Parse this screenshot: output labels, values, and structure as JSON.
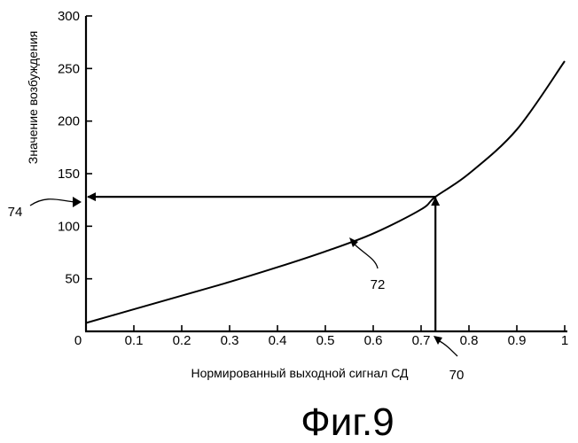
{
  "chart_data": {
    "type": "line",
    "title": "",
    "xlabel": "Нормированный выходной сигнал СД",
    "ylabel": "Значение возбуждения",
    "xlim": [
      0,
      1
    ],
    "ylim": [
      0,
      300
    ],
    "x_ticks": [
      "0",
      "0.1",
      "0.2",
      "0.3",
      "0.4",
      "0.5",
      "0.6",
      "0.7",
      "0.8",
      "0.9",
      "1"
    ],
    "y_ticks": [
      "50",
      "100",
      "150",
      "200",
      "250",
      "300"
    ],
    "grid": false,
    "legend": "none",
    "series": [
      {
        "x": [
          0,
          0.1,
          0.2,
          0.3,
          0.4,
          0.5,
          0.6,
          0.7,
          0.73,
          0.8,
          0.9,
          1.0
        ],
        "values": [
          8,
          21,
          34,
          47,
          61,
          76,
          93,
          116,
          128,
          150,
          192,
          257
        ]
      }
    ],
    "marker": {
      "x": 0.73,
      "y": 128
    },
    "annotations": [
      {
        "label": "72",
        "target": "curve"
      },
      {
        "label": "74",
        "target": "y-axis"
      },
      {
        "label": "70",
        "target": "x-axis"
      }
    ]
  },
  "caption": "Фиг.9",
  "colors": {
    "ink": "#000000",
    "background": "#ffffff"
  }
}
